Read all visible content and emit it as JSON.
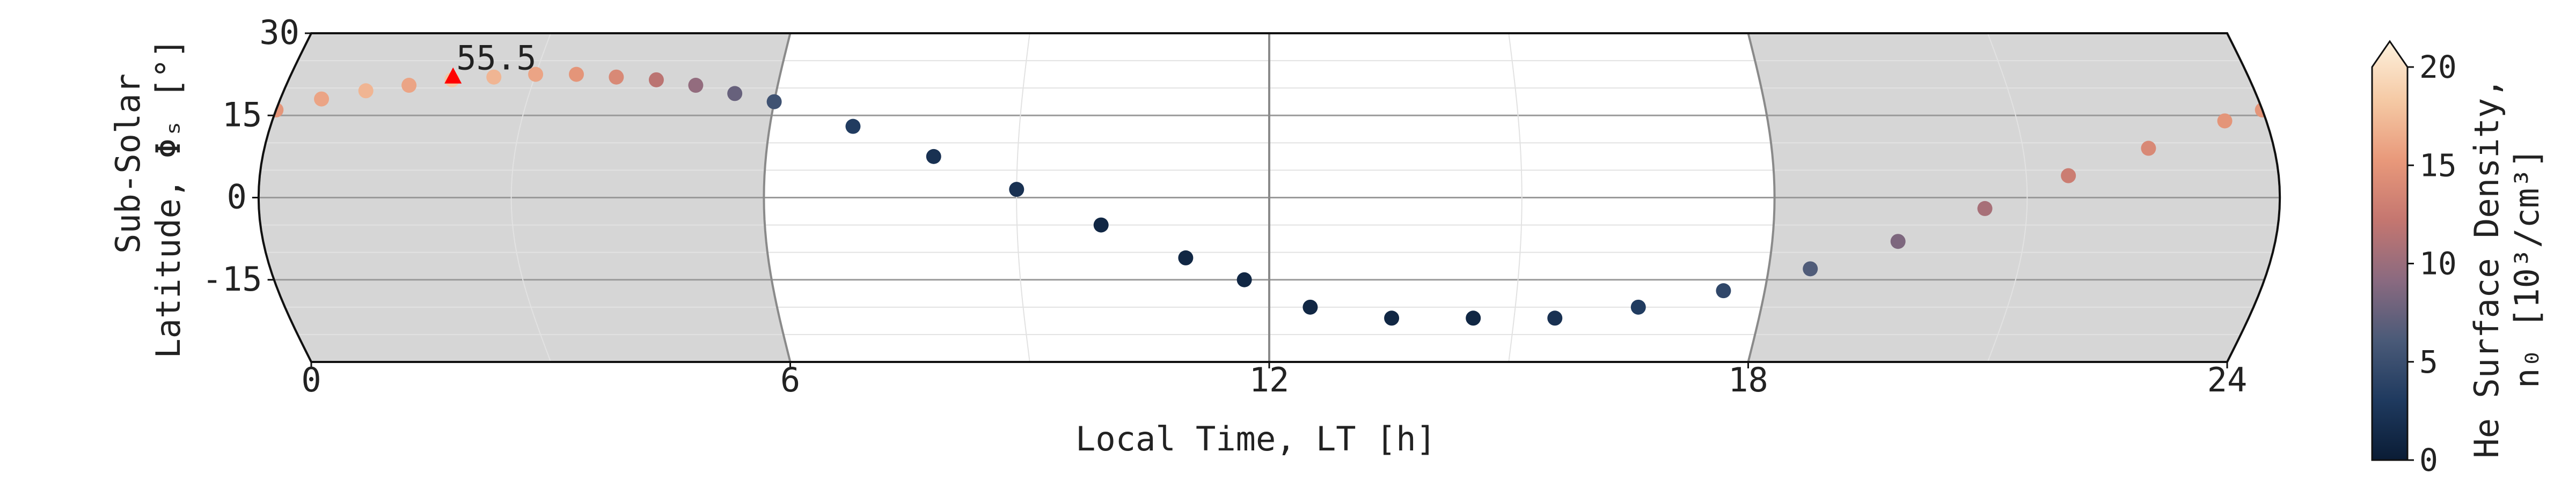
{
  "chart_data": {
    "type": "scatter",
    "title": "",
    "xlabel": "Local Time, LT [h]",
    "ylabel_line1": "Sub-Solar",
    "ylabel_line2": "Latitude, Φₛ [°]",
    "xlim": [
      0,
      24
    ],
    "ylim": [
      -30,
      30
    ],
    "xticks": [
      "0",
      "6",
      "12",
      "18",
      "24"
    ],
    "yticks": [
      "30",
      "15",
      "0",
      "-15"
    ],
    "xtick_values": [
      0,
      6,
      12,
      18,
      24
    ],
    "ytick_values": [
      30,
      15,
      0,
      -15
    ],
    "nightside_shading": [
      [
        0,
        6
      ],
      [
        18,
        24
      ]
    ],
    "grid": true,
    "annotation": {
      "text": "55.5",
      "x": 2.0,
      "y": 22,
      "color": "#ff0000",
      "marker": "triangle"
    },
    "colorbar": {
      "label_line1": "He Surface Density,",
      "label_line2": "n₀ [10³/cm³]",
      "ticks": [
        "0",
        "5",
        "10",
        "15",
        "20"
      ],
      "tick_values": [
        0,
        5,
        10,
        15,
        20
      ],
      "range": [
        0,
        20
      ],
      "extend": "max",
      "colormap": [
        "#0a1c35",
        "#1f3a5f",
        "#4a5a78",
        "#8a6a80",
        "#c47670",
        "#e8987a",
        "#f5c9a4",
        "#fdf0dc"
      ]
    },
    "series": [
      {
        "points_note_excluded": true,
        "values": [
          {
            "x": 0.0,
            "y": 16,
            "v": 14
          },
          {
            "x": 0.5,
            "y": 18,
            "v": 15
          },
          {
            "x": 1.0,
            "y": 19.5,
            "v": 16
          },
          {
            "x": 1.5,
            "y": 20.5,
            "v": 15
          },
          {
            "x": 2.0,
            "y": 21.5,
            "v": 17
          },
          {
            "x": 2.5,
            "y": 22,
            "v": 16
          },
          {
            "x": 3.0,
            "y": 22.5,
            "v": 15
          },
          {
            "x": 3.5,
            "y": 22.5,
            "v": 14
          },
          {
            "x": 4.0,
            "y": 22,
            "v": 13
          },
          {
            "x": 4.5,
            "y": 21.5,
            "v": 11
          },
          {
            "x": 5.0,
            "y": 20.5,
            "v": 9
          },
          {
            "x": 5.5,
            "y": 19,
            "v": 7
          },
          {
            "x": 6.0,
            "y": 17.5,
            "v": 5
          },
          {
            "x": 7.0,
            "y": 13,
            "v": 3
          },
          {
            "x": 8.0,
            "y": 7.5,
            "v": 2
          },
          {
            "x": 9.0,
            "y": 1.5,
            "v": 2
          },
          {
            "x": 10.0,
            "y": -5,
            "v": 1
          },
          {
            "x": 11.0,
            "y": -11,
            "v": 1
          },
          {
            "x": 11.7,
            "y": -15,
            "v": 1
          },
          {
            "x": 12.5,
            "y": -20,
            "v": 1
          },
          {
            "x": 13.5,
            "y": -22,
            "v": 1
          },
          {
            "x": 14.5,
            "y": -22,
            "v": 1
          },
          {
            "x": 15.5,
            "y": -22,
            "v": 2
          },
          {
            "x": 16.5,
            "y": -20,
            "v": 3
          },
          {
            "x": 17.5,
            "y": -17,
            "v": 4
          },
          {
            "x": 18.5,
            "y": -13,
            "v": 6
          },
          {
            "x": 19.5,
            "y": -8,
            "v": 8
          },
          {
            "x": 20.5,
            "y": -2,
            "v": 10
          },
          {
            "x": 21.5,
            "y": 4,
            "v": 12
          },
          {
            "x": 22.5,
            "y": 9,
            "v": 13
          },
          {
            "x": 23.5,
            "y": 14,
            "v": 14
          },
          {
            "x": 24.0,
            "y": 16,
            "v": 14
          }
        ]
      }
    ]
  }
}
